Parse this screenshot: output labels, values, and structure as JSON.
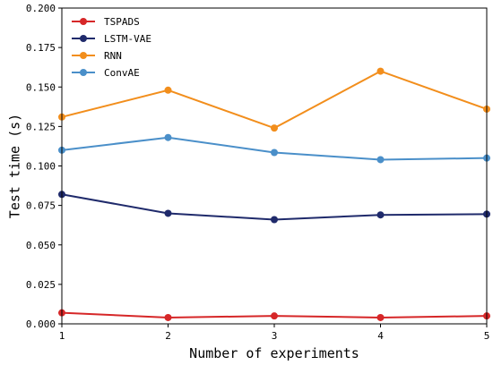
{
  "chart_data": {
    "type": "line",
    "title": "",
    "xlabel": "Number of experiments",
    "ylabel": "Test time (s)",
    "x": [
      1,
      2,
      3,
      4,
      5
    ],
    "xticks": [
      "1",
      "2",
      "3",
      "4",
      "5"
    ],
    "xlim": [
      1,
      5
    ],
    "ylim": [
      0,
      0.2
    ],
    "yticks": [
      "0.000",
      "0.025",
      "0.050",
      "0.075",
      "0.100",
      "0.125",
      "0.150",
      "0.175",
      "0.200"
    ],
    "grid": false,
    "legend_position": "top-left",
    "series": [
      {
        "name": "TSPADS",
        "color": "#d62728",
        "values": [
          0.007,
          0.004,
          0.005,
          0.004,
          0.005
        ]
      },
      {
        "name": "LSTM-VAE",
        "color": "#1f2a6b",
        "values": [
          0.082,
          0.07,
          0.066,
          0.069,
          0.0695
        ]
      },
      {
        "name": "RNN",
        "color": "#f28e1c",
        "values": [
          0.131,
          0.148,
          0.124,
          0.16,
          0.136
        ]
      },
      {
        "name": "ConvAE",
        "color": "#4a8fc9",
        "values": [
          0.11,
          0.118,
          0.1085,
          0.104,
          0.105
        ]
      }
    ]
  }
}
